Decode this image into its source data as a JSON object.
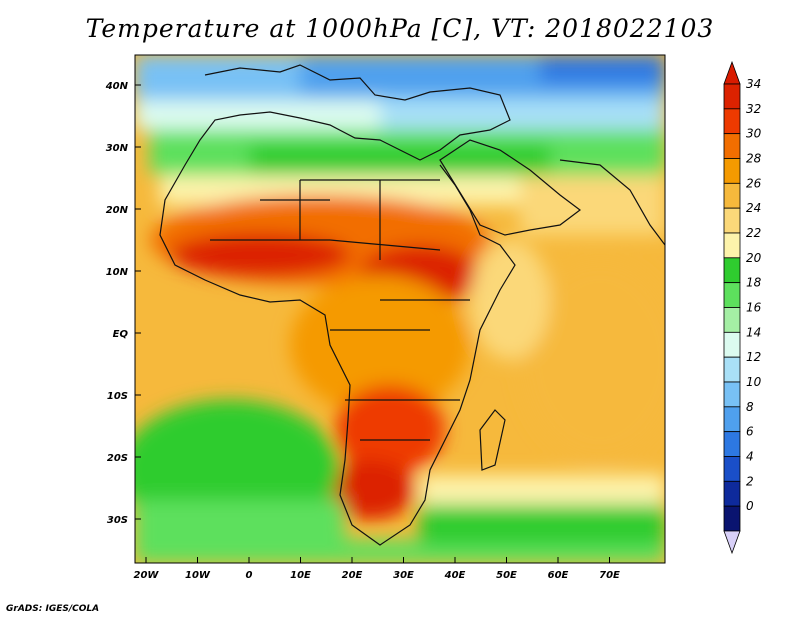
{
  "title": "Temperature at 1000hPa [C], VT: 2018022103",
  "credit": "GrADS: IGES/COLA",
  "map": {
    "lat_labels": [
      "40N",
      "30N",
      "20N",
      "10N",
      "EQ",
      "10S",
      "20S",
      "30S"
    ],
    "lon_labels": [
      "20W",
      "10W",
      "0",
      "10E",
      "20E",
      "30E",
      "40E",
      "50E",
      "60E",
      "70E"
    ]
  },
  "colorbar": {
    "labels": [
      "34",
      "32",
      "30",
      "28",
      "26",
      "24",
      "22",
      "20",
      "18",
      "16",
      "14",
      "12",
      "10",
      "8",
      "6",
      "4",
      "2",
      "0"
    ],
    "colors": [
      "#dc2200",
      "#ee3a00",
      "#f26e00",
      "#f59a00",
      "#f6b93c",
      "#fbd879",
      "#fdf3ab",
      "#2fcc2f",
      "#5de05d",
      "#a5efa5",
      "#dcfbf0",
      "#a9e0f7",
      "#78c1f5",
      "#4fa0ee",
      "#2d78e2",
      "#1a4fc8",
      "#0e2a9c",
      "#0a1470"
    ],
    "over_color": "#d91b00",
    "under_color": "#d8d0f8"
  }
}
